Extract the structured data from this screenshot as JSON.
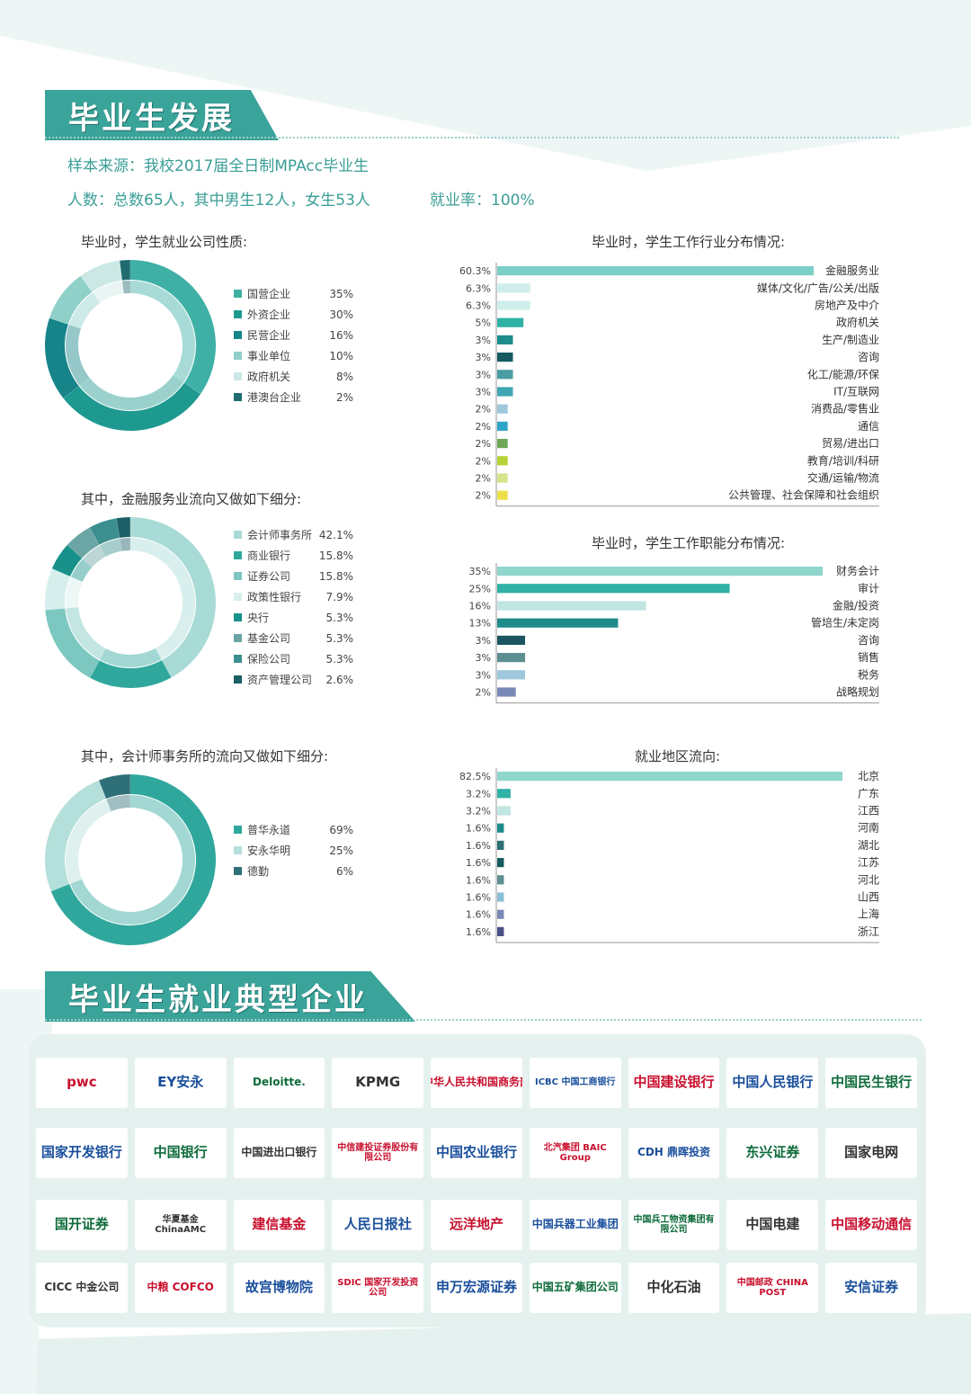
{
  "header": {
    "title": "毕业生发展",
    "source": "样本来源：我校2017届全日制MPAcc毕业生",
    "stats": "人数：总数65人，其中男生12人，女生53人",
    "rate": "就业率：100%"
  },
  "enterprise_section": {
    "title": "毕业生就业典型企业"
  },
  "section_titles": {
    "donut1": "毕业时，学生就业公司性质:",
    "donut2": "其中，金融服务业流向又做如下细分:",
    "donut3": "其中，会计师事务所的流向又做如下细分:",
    "bar1": "毕业时，学生工作行业分布情况:",
    "bar2": "毕业时，学生工作职能分布情况:",
    "bar3": "就业地区流向:"
  },
  "colors": {
    "teal": "#3aa39a",
    "light_teal": "#b9e0dc",
    "pale_teal": "#d6ecea",
    "dark_teal": "#1f6b70",
    "panel": "#e4f1ef"
  },
  "chart_data": [
    {
      "type": "pie",
      "labels": [
        "国营企业",
        "外资企业",
        "民营企业",
        "事业单位",
        "政府机关",
        "港澳台企业"
      ],
      "values": [
        35,
        30,
        16,
        10,
        8,
        2
      ],
      "value_labels": [
        "35%",
        "30%",
        "16%",
        "10%",
        "8%",
        "2%"
      ],
      "colors": [
        "#3fb0a6",
        "#1e9990",
        "#17848a",
        "#8fd0c9",
        "#cbe8e5",
        "#1f6b70"
      ]
    },
    {
      "type": "pie",
      "labels": [
        "会计师事务所",
        "商业银行",
        "证券公司",
        "政策性银行",
        "央行",
        "基金公司",
        "保险公司",
        "资产管理公司"
      ],
      "values": [
        42.1,
        15.8,
        15.8,
        7.9,
        5.3,
        5.3,
        5.3,
        2.6
      ],
      "value_labels": [
        "42.1%",
        "15.8%",
        "15.8%",
        "7.9%",
        "5.3%",
        "5.3%",
        "5.3%",
        "2.6%"
      ],
      "colors": [
        "#a9dbd6",
        "#30a79d",
        "#7cc8c1",
        "#d6efec",
        "#18918a",
        "#6ba5a4",
        "#3c8f8f",
        "#1c5f66"
      ]
    },
    {
      "type": "pie",
      "labels": [
        "普华永道",
        "安永华明",
        "德勤"
      ],
      "values": [
        69,
        25,
        6
      ],
      "value_labels": [
        "69%",
        "25%",
        "6%"
      ],
      "colors": [
        "#30a79d",
        "#b5dfda",
        "#2f6f78"
      ]
    },
    {
      "type": "bar",
      "orientation": "horizontal",
      "categories": [
        "金融服务业",
        "媒体/文化/广告/公关/出版",
        "房地产及中介",
        "政府机关",
        "生产/制造业",
        "咨询",
        "化工/能源/环保",
        "IT/互联网",
        "消费品/零售业",
        "通信",
        "贸易/进出口",
        "教育/培训/科研",
        "交通/运输/物流",
        "公共管理、社会保障和社会组织"
      ],
      "values": [
        60.3,
        6.3,
        6.3,
        5,
        3,
        3,
        3,
        3,
        2,
        2,
        2,
        2,
        2,
        2
      ],
      "value_labels": [
        "60.3%",
        "6.3%",
        "6.3%",
        "5%",
        "3%",
        "3%",
        "3%",
        "3%",
        "2%",
        "2%",
        "2%",
        "2%",
        "2%",
        "2%"
      ],
      "colors": [
        "#7ccfc6",
        "#cfeeea",
        "#cfeeea",
        "#2fb1a6",
        "#1f8c8c",
        "#165b60",
        "#4a9da3",
        "#3fa7b4",
        "#9fc8dd",
        "#2da5c8",
        "#6ea657",
        "#b5d236",
        "#d8e48a",
        "#ecdf4a"
      ],
      "xlim": [
        0,
        60.3
      ]
    },
    {
      "type": "bar",
      "orientation": "horizontal",
      "categories": [
        "财务会计",
        "审计",
        "金融/投资",
        "管培生/未定岗",
        "咨询",
        "销售",
        "税务",
        "战略规划"
      ],
      "values": [
        35,
        25,
        16,
        13,
        3,
        3,
        3,
        2
      ],
      "value_labels": [
        "35%",
        "25%",
        "16%",
        "13%",
        "3%",
        "3%",
        "3%",
        "2%"
      ],
      "colors": [
        "#8fd6cd",
        "#2fb1a6",
        "#bfe6e1",
        "#1f8c8c",
        "#1c5560",
        "#5c8f92",
        "#9fc8dd",
        "#7a88b8"
      ],
      "xlim": [
        0,
        35
      ]
    },
    {
      "type": "bar",
      "orientation": "horizontal",
      "categories": [
        "北京",
        "广东",
        "江西",
        "河南",
        "湖北",
        "江苏",
        "河北",
        "山西",
        "上海",
        "浙江"
      ],
      "values": [
        82.5,
        3.2,
        3.2,
        1.6,
        1.6,
        1.6,
        1.6,
        1.6,
        1.6,
        1.6
      ],
      "value_labels": [
        "82.5%",
        "3.2%",
        "3.2%",
        "1.6%",
        "1.6%",
        "1.6%",
        "1.6%",
        "1.6%",
        "1.6%",
        "1.6%"
      ],
      "colors": [
        "#8fd6cd",
        "#2fb1a6",
        "#bfe6e1",
        "#1f8c8c",
        "#2b6f74",
        "#165b60",
        "#5c8f92",
        "#8bbfd6",
        "#7a88b8",
        "#4a4f86"
      ],
      "xlim": [
        0,
        82.5
      ]
    }
  ],
  "logos": {
    "row1": [
      "pwc",
      "EY安永",
      "Deloitte.",
      "KPMG",
      "中华人民共和国商务部",
      "ICBC 中国工商银行",
      "中国建设银行",
      "中国人民银行",
      "中国民生银行"
    ],
    "row2": [
      "国家开发银行",
      "中国银行",
      "中国进出口银行",
      "中信建投证券股份有限公司",
      "中国农业银行",
      "北汽集团 BAIC Group",
      "CDH 鼎晖投资",
      "东兴证券",
      "国家电网"
    ],
    "row3": [
      "国开证券",
      "华夏基金 ChinaAMC",
      "建信基金",
      "人民日报社",
      "远洋地产",
      "中国兵器工业集团",
      "中国兵工物资集团有限公司",
      "中国电建",
      "中国移动通信"
    ],
    "row4": [
      "CICC 中金公司",
      "中粮 COFCO",
      "故宫博物院",
      "SDIC 国家开发投资公司",
      "申万宏源证券",
      "中国五矿集团公司",
      "中化石油",
      "中国邮政 CHINA POST",
      "安信证券"
    ]
  }
}
